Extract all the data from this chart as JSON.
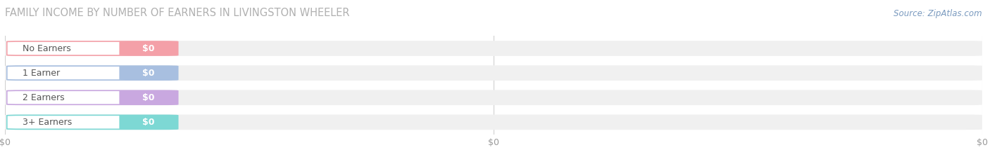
{
  "title": "FAMILY INCOME BY NUMBER OF EARNERS IN LIVINGSTON WHEELER",
  "source": "Source: ZipAtlas.com",
  "categories": [
    "No Earners",
    "1 Earner",
    "2 Earners",
    "3+ Earners"
  ],
  "values": [
    0,
    0,
    0,
    0
  ],
  "bar_colors": [
    "#f4a0a8",
    "#a8bfe0",
    "#c9a8e0",
    "#7dd8d4"
  ],
  "bar_bg_color": "#f0f0f0",
  "bg_color": "#ffffff",
  "title_color": "#b0b0b0",
  "source_color": "#7a9abf",
  "label_text_color": "#555555",
  "value_label_color": "#ffffff",
  "x_tick_labels": [
    "$0",
    "$0",
    "$0"
  ],
  "x_tick_pos": [
    0.0,
    0.5,
    1.0
  ],
  "xlim": [
    0,
    1
  ],
  "figsize": [
    14.06,
    2.34
  ],
  "dpi": 100
}
